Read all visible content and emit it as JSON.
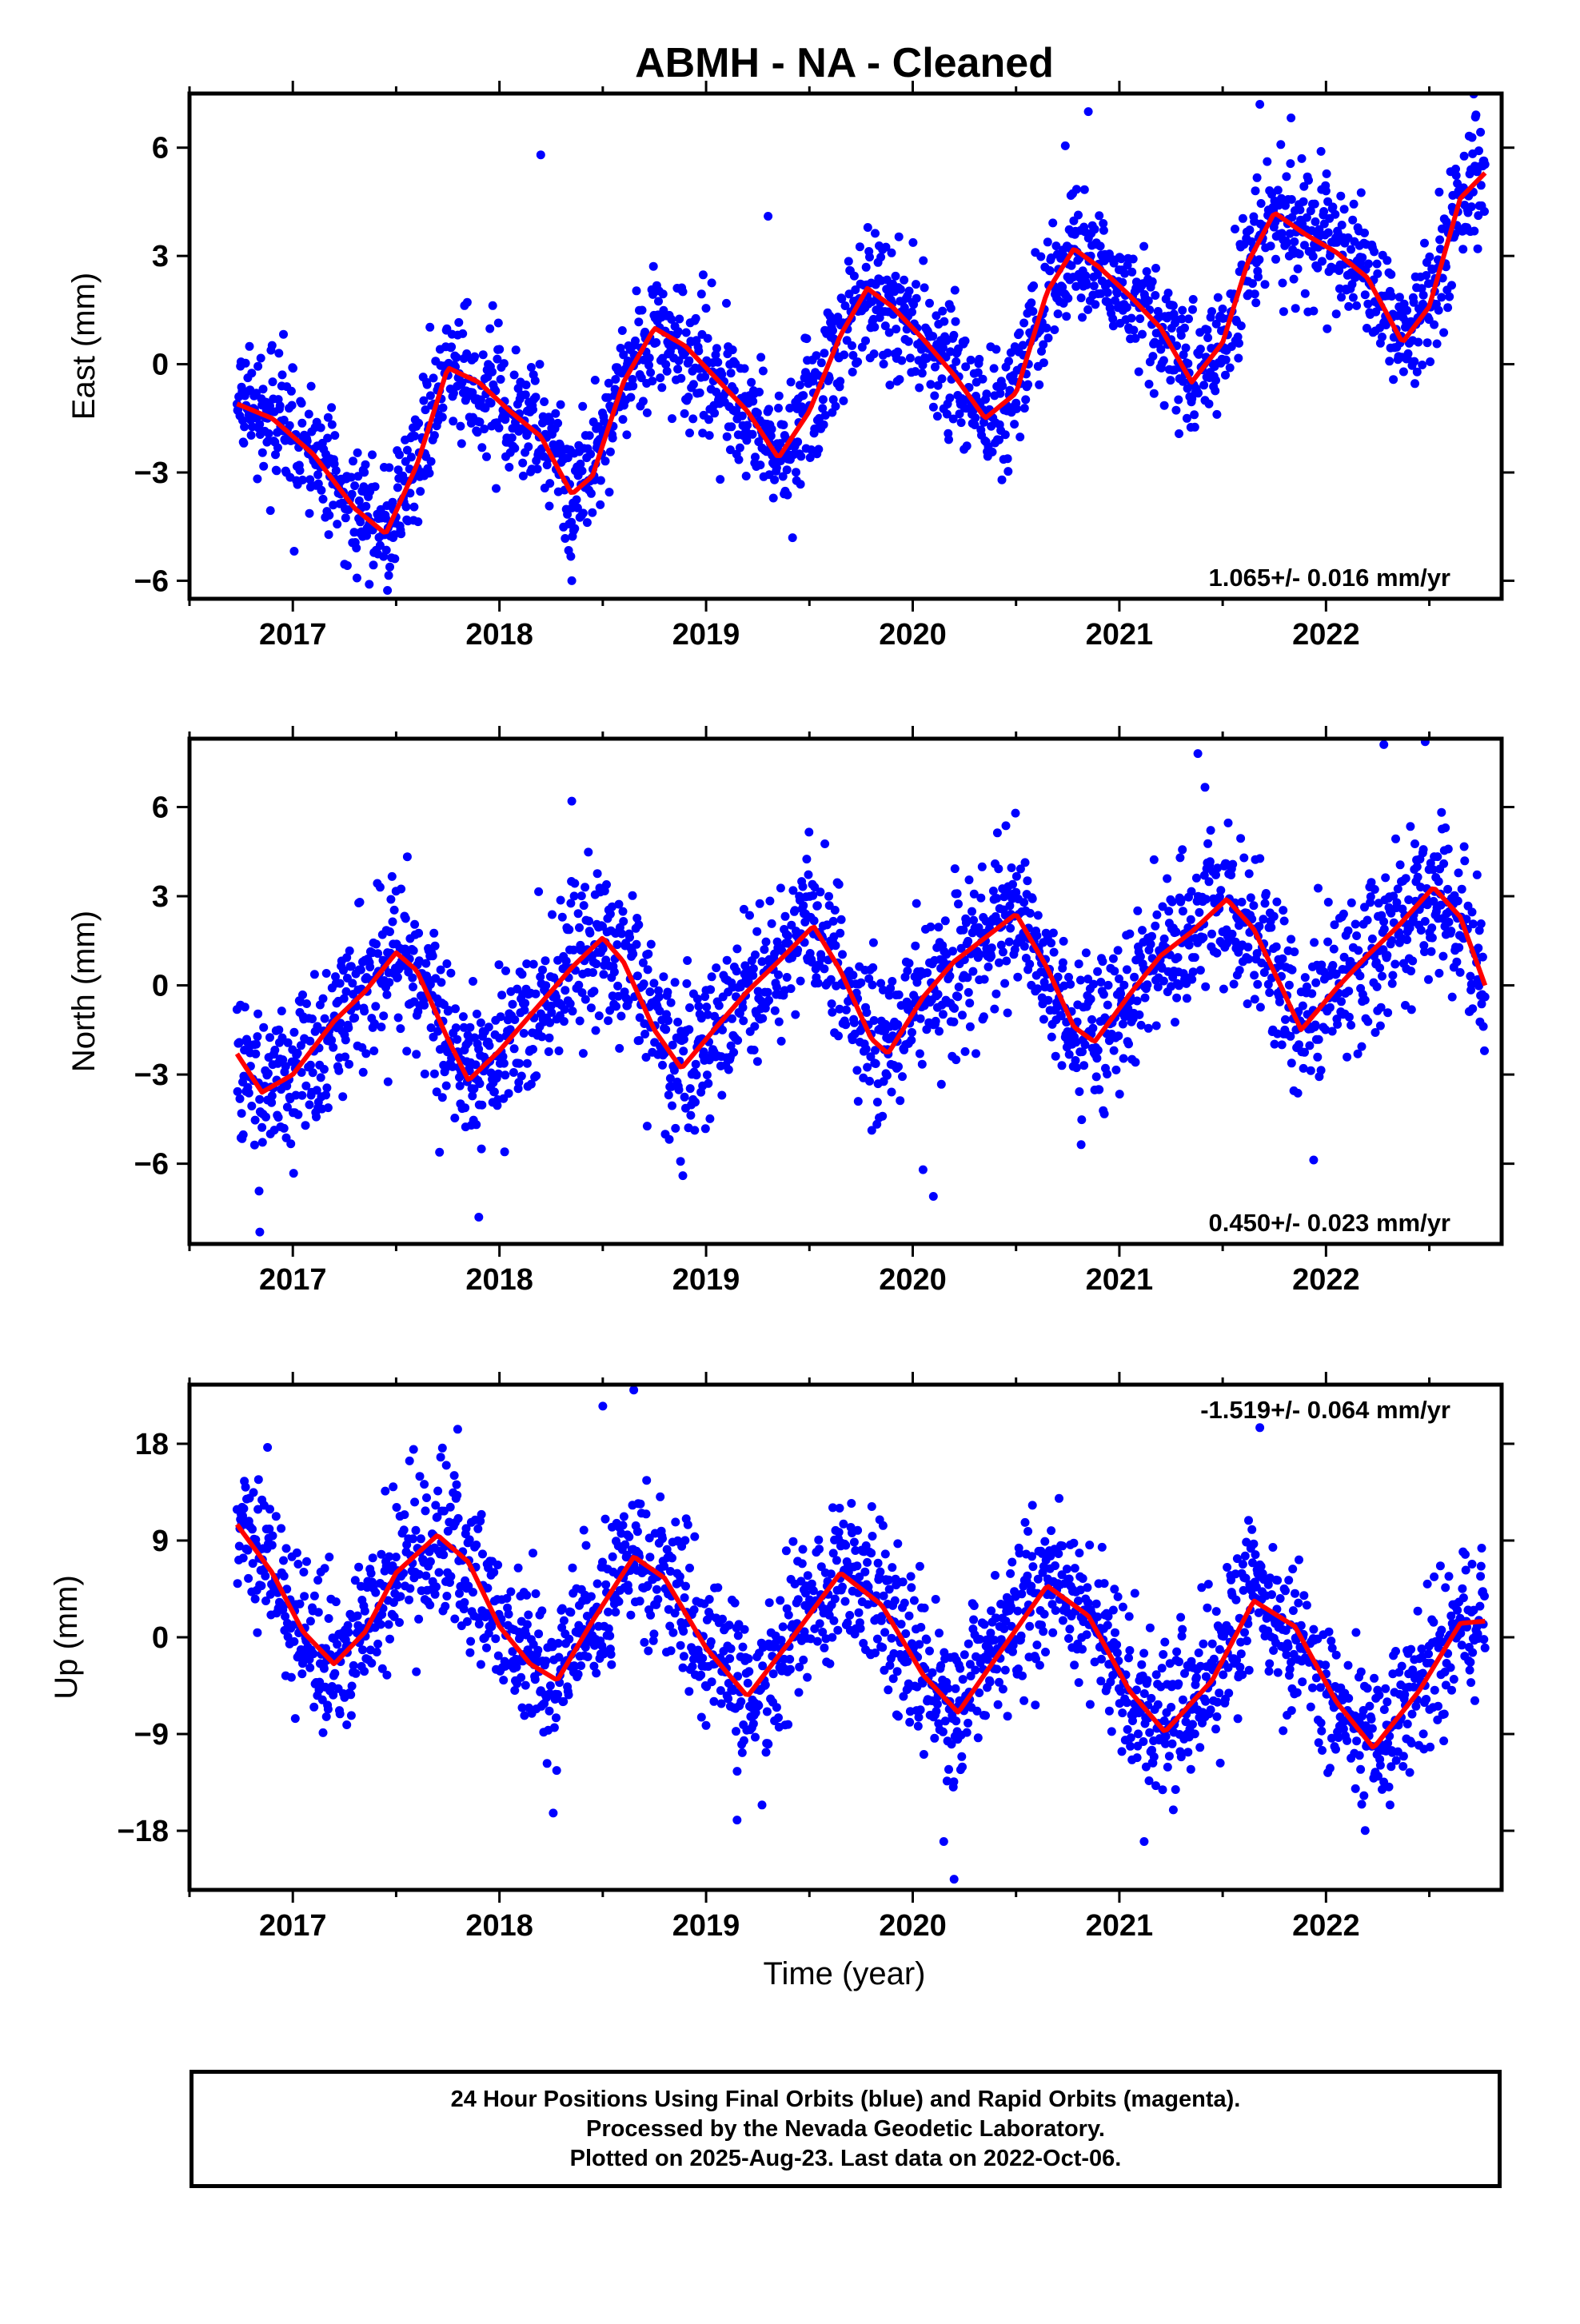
{
  "title": "ABMH  - NA - Cleaned",
  "x_axis": {
    "label": "Time (year)",
    "range": [
      2016.5,
      2022.85
    ],
    "ticks": [
      2017,
      2018,
      2019,
      2020,
      2021,
      2022
    ],
    "tick_labels": [
      "2017",
      "2018",
      "2019",
      "2020",
      "2021",
      "2022"
    ]
  },
  "colors": {
    "points": "#0000ff",
    "model": "#ff0000",
    "frame": "#000000"
  },
  "caption": {
    "line1": "24 Hour Positions Using Final Orbits (blue) and Rapid Orbits (magenta).",
    "line2": "Processed by the Nevada Geodetic Laboratory.",
    "line3": "Plotted on 2025-Aug-23. Last data on 2022-Oct-06."
  },
  "chart_data": [
    {
      "type": "scatter",
      "id": "east",
      "ylabel": "East (mm)",
      "ylim": [
        -6.5,
        7.5
      ],
      "yticks": [
        -6,
        -3,
        0,
        3,
        6
      ],
      "ytick_labels": [
        "−6",
        "−3",
        "0",
        "3",
        "6"
      ],
      "rate_label": "1.065+/- 0.016 mm/yr",
      "rate_position": "bottom-right",
      "data_start": 2016.73,
      "data_end": 2022.77,
      "trend_mm_per_yr": 1.065,
      "model_points": [
        [
          2016.73,
          -1.1
        ],
        [
          2016.9,
          -1.5
        ],
        [
          2017.1,
          -2.5
        ],
        [
          2017.3,
          -4.0
        ],
        [
          2017.45,
          -4.7
        ],
        [
          2017.6,
          -2.8
        ],
        [
          2017.75,
          -0.1
        ],
        [
          2017.9,
          -0.5
        ],
        [
          2018.05,
          -1.3
        ],
        [
          2018.2,
          -2.0
        ],
        [
          2018.35,
          -3.6
        ],
        [
          2018.45,
          -3.1
        ],
        [
          2018.6,
          -0.5
        ],
        [
          2018.75,
          1.0
        ],
        [
          2018.9,
          0.5
        ],
        [
          2019.05,
          -0.4
        ],
        [
          2019.2,
          -1.3
        ],
        [
          2019.35,
          -2.6
        ],
        [
          2019.5,
          -1.3
        ],
        [
          2019.65,
          0.8
        ],
        [
          2019.78,
          2.1
        ],
        [
          2019.9,
          1.6
        ],
        [
          2020.05,
          0.7
        ],
        [
          2020.2,
          -0.3
        ],
        [
          2020.35,
          -1.5
        ],
        [
          2020.5,
          -0.8
        ],
        [
          2020.65,
          2.0
        ],
        [
          2020.78,
          3.2
        ],
        [
          2020.9,
          2.7
        ],
        [
          2021.05,
          1.9
        ],
        [
          2021.2,
          1.0
        ],
        [
          2021.35,
          -0.5
        ],
        [
          2021.5,
          0.6
        ],
        [
          2021.62,
          2.8
        ],
        [
          2021.75,
          4.2
        ],
        [
          2021.9,
          3.6
        ],
        [
          2022.05,
          3.1
        ],
        [
          2022.2,
          2.4
        ],
        [
          2022.37,
          0.6
        ],
        [
          2022.5,
          1.6
        ],
        [
          2022.65,
          4.6
        ],
        [
          2022.77,
          5.3
        ]
      ],
      "noise_mm": 0.9,
      "outliers": [
        [
          2018.2,
          5.8
        ],
        [
          2019.3,
          4.1
        ],
        [
          2020.85,
          7.0
        ],
        [
          2021.68,
          7.2
        ],
        [
          2018.35,
          -6.0
        ],
        [
          2017.37,
          -6.1
        ]
      ]
    },
    {
      "type": "scatter",
      "id": "north",
      "ylabel": "North (mm)",
      "ylim": [
        -8.7,
        8.3
      ],
      "yticks": [
        -6,
        -3,
        0,
        3,
        6
      ],
      "ytick_labels": [
        "−6",
        "−3",
        "0",
        "3",
        "6"
      ],
      "rate_label": "0.450+/- 0.023 mm/yr",
      "rate_position": "bottom-right",
      "data_start": 2016.73,
      "data_end": 2022.77,
      "trend_mm_per_yr": 0.45,
      "model_points": [
        [
          2016.73,
          -2.3
        ],
        [
          2016.85,
          -3.6
        ],
        [
          2017.0,
          -3.0
        ],
        [
          2017.2,
          -1.2
        ],
        [
          2017.35,
          -0.2
        ],
        [
          2017.5,
          1.1
        ],
        [
          2017.6,
          0.5
        ],
        [
          2017.75,
          -1.8
        ],
        [
          2017.85,
          -3.2
        ],
        [
          2018.0,
          -2.2
        ],
        [
          2018.2,
          -0.6
        ],
        [
          2018.35,
          0.6
        ],
        [
          2018.5,
          1.6
        ],
        [
          2018.6,
          0.8
        ],
        [
          2018.75,
          -1.5
        ],
        [
          2018.88,
          -2.8
        ],
        [
          2019.05,
          -1.4
        ],
        [
          2019.2,
          -0.2
        ],
        [
          2019.35,
          0.8
        ],
        [
          2019.52,
          2.0
        ],
        [
          2019.65,
          0.5
        ],
        [
          2019.8,
          -1.8
        ],
        [
          2019.88,
          -2.3
        ],
        [
          2020.05,
          -0.4
        ],
        [
          2020.2,
          0.8
        ],
        [
          2020.35,
          1.6
        ],
        [
          2020.5,
          2.4
        ],
        [
          2020.65,
          0.6
        ],
        [
          2020.78,
          -1.4
        ],
        [
          2020.88,
          -1.9
        ],
        [
          2021.05,
          -0.3
        ],
        [
          2021.2,
          1.0
        ],
        [
          2021.35,
          1.8
        ],
        [
          2021.52,
          2.9
        ],
        [
          2021.65,
          1.9
        ],
        [
          2021.78,
          0.0
        ],
        [
          2021.88,
          -1.5
        ],
        [
          2022.05,
          -0.1
        ],
        [
          2022.2,
          1.0
        ],
        [
          2022.35,
          2.0
        ],
        [
          2022.52,
          3.3
        ],
        [
          2022.65,
          2.3
        ],
        [
          2022.77,
          0.0
        ]
      ],
      "noise_mm": 1.3,
      "outliers": [
        [
          2016.84,
          -8.3
        ],
        [
          2017.9,
          -7.8
        ],
        [
          2018.35,
          6.2
        ],
        [
          2020.05,
          -6.2
        ],
        [
          2020.1,
          -7.1
        ],
        [
          2021.38,
          7.8
        ],
        [
          2022.28,
          8.1
        ],
        [
          2022.48,
          8.2
        ]
      ]
    },
    {
      "type": "scatter",
      "id": "up",
      "ylabel": "Up (mm)",
      "ylim": [
        -23.5,
        23.5
      ],
      "yticks": [
        -18,
        -9,
        0,
        9,
        18
      ],
      "ytick_labels": [
        "−18",
        "−9",
        "0",
        "9",
        "18"
      ],
      "rate_label": "-1.519+/- 0.064 mm/yr",
      "rate_position": "top-right",
      "data_start": 2016.73,
      "data_end": 2022.77,
      "trend_mm_per_yr": -1.519,
      "model_points": [
        [
          2016.73,
          10.5
        ],
        [
          2016.9,
          6.0
        ],
        [
          2017.05,
          0.5
        ],
        [
          2017.2,
          -2.5
        ],
        [
          2017.35,
          0.5
        ],
        [
          2017.5,
          6.0
        ],
        [
          2017.7,
          9.5
        ],
        [
          2017.85,
          7.0
        ],
        [
          2018.0,
          1.0
        ],
        [
          2018.15,
          -2.5
        ],
        [
          2018.28,
          -4.0
        ],
        [
          2018.45,
          1.5
        ],
        [
          2018.65,
          7.5
        ],
        [
          2018.8,
          5.5
        ],
        [
          2019.0,
          -1.0
        ],
        [
          2019.2,
          -5.5
        ],
        [
          2019.4,
          -0.5
        ],
        [
          2019.65,
          6.0
        ],
        [
          2019.85,
          3.0
        ],
        [
          2020.05,
          -3.5
        ],
        [
          2020.22,
          -7.0
        ],
        [
          2020.4,
          -2.0
        ],
        [
          2020.65,
          4.8
        ],
        [
          2020.85,
          2.0
        ],
        [
          2021.05,
          -5.0
        ],
        [
          2021.22,
          -8.8
        ],
        [
          2021.45,
          -4.0
        ],
        [
          2021.65,
          3.4
        ],
        [
          2021.85,
          1.0
        ],
        [
          2022.05,
          -6.0
        ],
        [
          2022.23,
          -10.3
        ],
        [
          2022.45,
          -5.0
        ],
        [
          2022.65,
          1.3
        ],
        [
          2022.77,
          1.5
        ]
      ],
      "noise_mm": 3.6,
      "outliers": [
        [
          2018.65,
          23.0
        ],
        [
          2018.5,
          21.5
        ],
        [
          2021.68,
          19.5
        ],
        [
          2020.2,
          -22.5
        ],
        [
          2020.15,
          -19.0
        ],
        [
          2021.12,
          -19.0
        ],
        [
          2019.15,
          -17.0
        ]
      ]
    }
  ]
}
